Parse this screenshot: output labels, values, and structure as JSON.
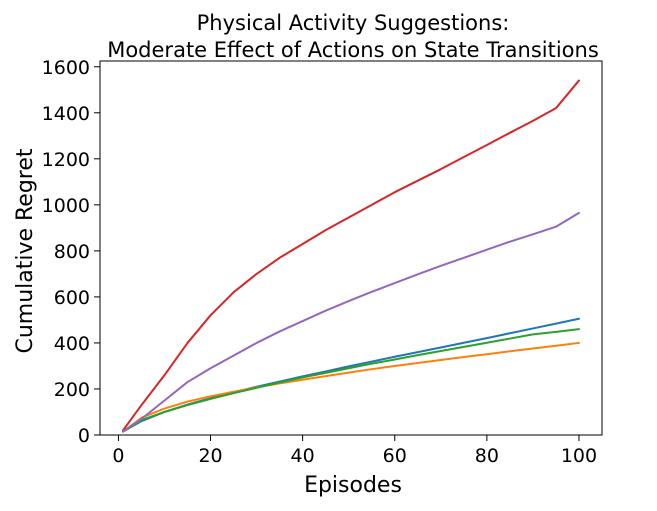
{
  "chart_data": {
    "type": "line",
    "title": "Physical Activity Suggestions:\nModerate Effect of Actions on State Transitions",
    "title_lines": [
      "Physical Activity Suggestions:",
      "Moderate Effect of Actions on State Transitions"
    ],
    "xlabel": "Episodes",
    "ylabel": "Cumulative Regret",
    "xlim": [
      -4,
      105
    ],
    "ylim": [
      0,
      1625
    ],
    "xticks": [
      0,
      20,
      40,
      60,
      80,
      100
    ],
    "yticks": [
      0,
      200,
      400,
      600,
      800,
      1000,
      1200,
      1400,
      1600
    ],
    "xtick_labels": [
      "0",
      "20",
      "40",
      "60",
      "80",
      "100"
    ],
    "ytick_labels": [
      "0",
      "200",
      "400",
      "600",
      "800",
      "1000",
      "1200",
      "1400",
      "1600"
    ],
    "grid": false,
    "legend": "none",
    "series": [
      {
        "color": "#1f77b4",
        "x": [
          1,
          5,
          10,
          15,
          20,
          25,
          30,
          35,
          40,
          45,
          50,
          55,
          60,
          65,
          70,
          75,
          80,
          85,
          90,
          95,
          100
        ],
        "values": [
          15,
          60,
          100,
          132,
          160,
          185,
          210,
          232,
          255,
          276,
          298,
          319,
          340,
          360,
          380,
          401,
          421,
          442,
          463,
          484,
          505
        ]
      },
      {
        "color": "#ff7f0e",
        "x": [
          1,
          5,
          10,
          15,
          20,
          25,
          30,
          35,
          40,
          45,
          50,
          55,
          60,
          65,
          70,
          75,
          80,
          85,
          90,
          95,
          100
        ],
        "values": [
          15,
          75,
          115,
          145,
          168,
          188,
          207,
          224,
          240,
          256,
          271,
          286,
          300,
          313,
          326,
          339,
          351,
          364,
          376,
          388,
          400
        ]
      },
      {
        "color": "#2ca02c",
        "x": [
          1,
          5,
          10,
          15,
          20,
          25,
          30,
          35,
          40,
          45,
          50,
          55,
          60,
          65,
          70,
          75,
          80,
          85,
          90,
          95,
          100
        ],
        "values": [
          15,
          65,
          100,
          130,
          157,
          182,
          205,
          228,
          250,
          270,
          290,
          310,
          328,
          347,
          365,
          383,
          401,
          419,
          437,
          448,
          460
        ]
      },
      {
        "color": "#d62728",
        "x": [
          1,
          5,
          10,
          15,
          20,
          25,
          30,
          35,
          40,
          45,
          50,
          55,
          60,
          65,
          70,
          75,
          80,
          85,
          90,
          95,
          100
        ],
        "values": [
          20,
          130,
          260,
          400,
          520,
          620,
          700,
          770,
          830,
          890,
          945,
          1000,
          1055,
          1105,
          1155,
          1208,
          1260,
          1313,
          1365,
          1420,
          1540
        ]
      },
      {
        "color": "#9467bd",
        "x": [
          1,
          5,
          10,
          15,
          20,
          25,
          30,
          35,
          40,
          45,
          50,
          55,
          60,
          65,
          70,
          75,
          80,
          85,
          90,
          95,
          100
        ],
        "values": [
          15,
          70,
          150,
          230,
          290,
          345,
          400,
          450,
          495,
          540,
          582,
          622,
          660,
          698,
          735,
          770,
          805,
          840,
          872,
          905,
          965
        ]
      }
    ]
  }
}
